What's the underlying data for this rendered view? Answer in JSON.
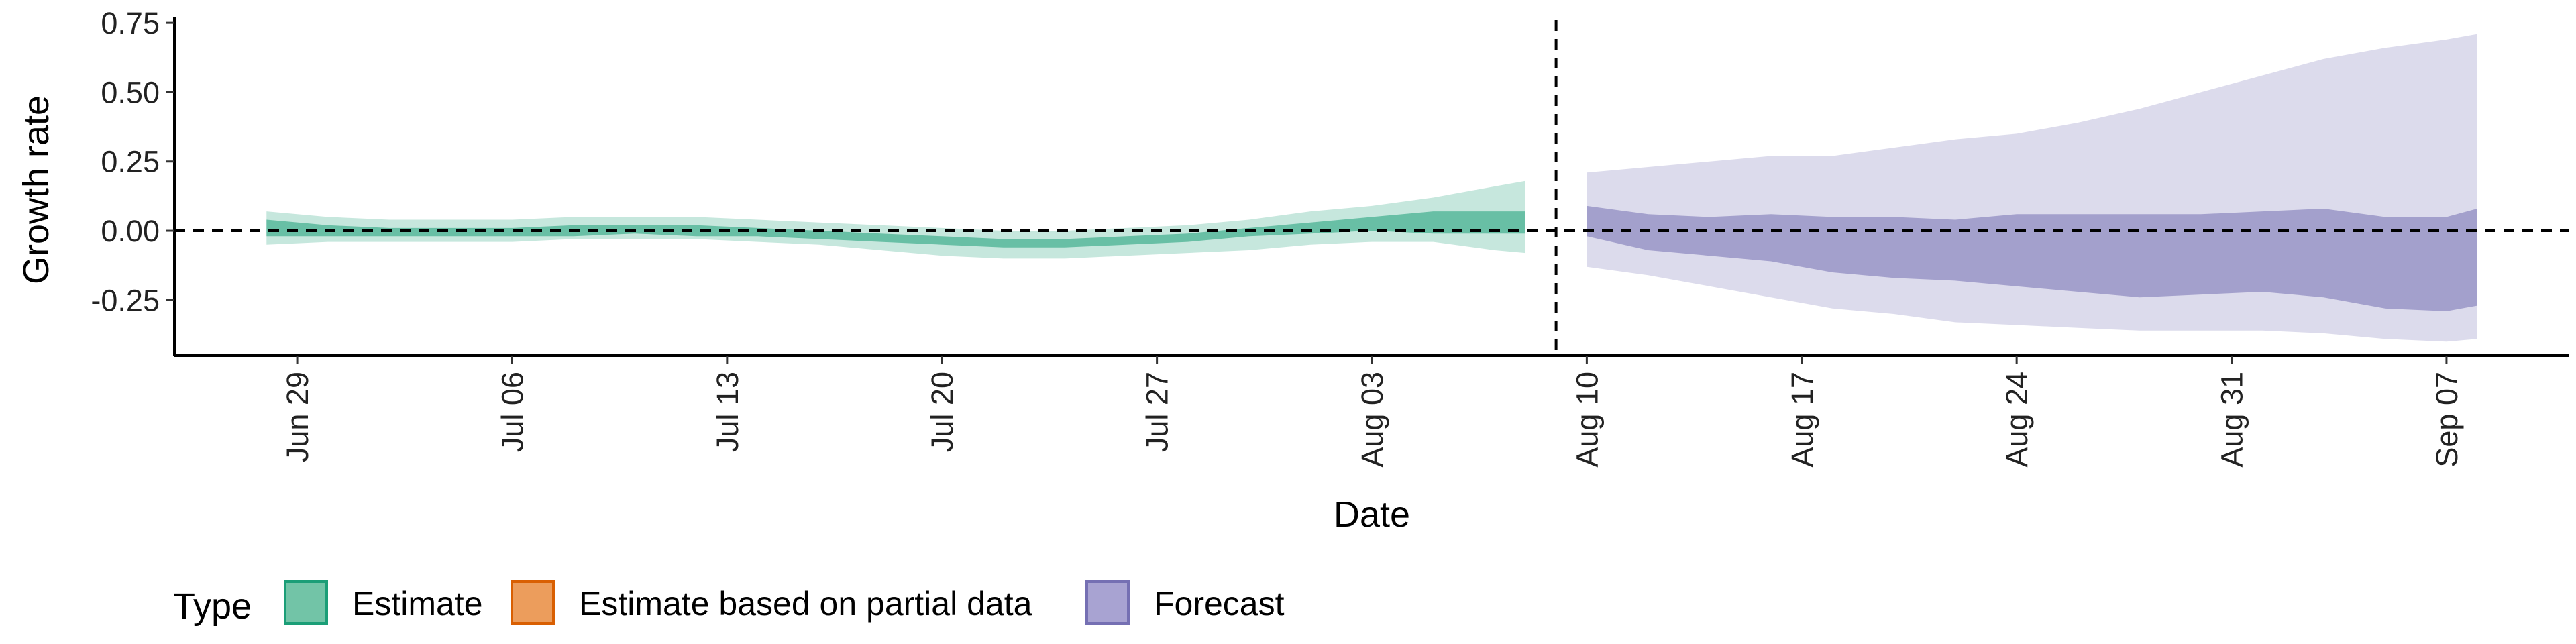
{
  "chart_data": {
    "type": "area",
    "xlabel": "Date",
    "ylabel": "Growth rate",
    "ylim": [
      -0.45,
      0.76
    ],
    "xlim": [
      "2020-06-25",
      "2020-09-11"
    ],
    "y_ticks": [
      -0.25,
      0.0,
      0.25,
      0.5,
      0.75
    ],
    "y_tick_labels": [
      "-0.25",
      "0.00",
      "0.25",
      "0.50",
      "0.75"
    ],
    "x_ticks": [
      "2020-06-29",
      "2020-07-06",
      "2020-07-13",
      "2020-07-20",
      "2020-07-27",
      "2020-08-03",
      "2020-08-10",
      "2020-08-17",
      "2020-08-24",
      "2020-08-31",
      "2020-09-07"
    ],
    "x_tick_labels": [
      "Jun 29",
      "Jul 06",
      "Jul 13",
      "Jul 20",
      "Jul 27",
      "Aug 03",
      "Aug 10",
      "Aug 17",
      "Aug 24",
      "Aug 31",
      "Sep 07"
    ],
    "reference_lines": {
      "horizontal_y": 0.0,
      "vertical_x": "2020-08-09"
    },
    "legend": {
      "title": "Type",
      "position": "bottom",
      "items": [
        {
          "label": "Estimate",
          "fill": "#72c4a7",
          "stroke": "#1b9e77"
        },
        {
          "label": "Estimate based on partial data",
          "fill": "#ec9d5c",
          "stroke": "#d95f02"
        },
        {
          "label": "Forecast",
          "fill": "#a8a3d2",
          "stroke": "#7570b3"
        }
      ]
    },
    "series": [
      {
        "name": "Estimate",
        "color": "#1b9e77",
        "x": [
          "2020-06-28",
          "2020-06-30",
          "2020-07-02",
          "2020-07-04",
          "2020-07-06",
          "2020-07-08",
          "2020-07-10",
          "2020-07-12",
          "2020-07-14",
          "2020-07-16",
          "2020-07-18",
          "2020-07-20",
          "2020-07-22",
          "2020-07-24",
          "2020-07-26",
          "2020-07-28",
          "2020-07-30",
          "2020-08-01",
          "2020-08-03",
          "2020-08-05",
          "2020-08-07",
          "2020-08-08"
        ],
        "lower_90": [
          -0.05,
          -0.04,
          -0.04,
          -0.04,
          -0.04,
          -0.03,
          -0.03,
          -0.03,
          -0.04,
          -0.05,
          -0.07,
          -0.09,
          -0.1,
          -0.1,
          -0.09,
          -0.08,
          -0.07,
          -0.05,
          -0.04,
          -0.04,
          -0.07,
          -0.08
        ],
        "upper_90": [
          0.07,
          0.05,
          0.04,
          0.04,
          0.04,
          0.05,
          0.05,
          0.05,
          0.04,
          0.03,
          0.02,
          0.01,
          0.0,
          0.0,
          0.01,
          0.02,
          0.04,
          0.07,
          0.09,
          0.12,
          0.16,
          0.18
        ],
        "lower_50": [
          -0.02,
          -0.02,
          -0.02,
          -0.02,
          -0.02,
          -0.02,
          -0.01,
          -0.02,
          -0.02,
          -0.03,
          -0.04,
          -0.05,
          -0.06,
          -0.06,
          -0.05,
          -0.04,
          -0.02,
          -0.01,
          0.0,
          -0.01,
          -0.01,
          -0.01
        ],
        "upper_50": [
          0.04,
          0.02,
          0.01,
          0.01,
          0.01,
          0.02,
          0.02,
          0.02,
          0.01,
          0.0,
          -0.01,
          -0.02,
          -0.03,
          -0.03,
          -0.02,
          -0.01,
          0.01,
          0.03,
          0.05,
          0.07,
          0.07,
          0.07
        ]
      },
      {
        "name": "Forecast",
        "color": "#7570b3",
        "x": [
          "2020-08-10",
          "2020-08-12",
          "2020-08-14",
          "2020-08-16",
          "2020-08-18",
          "2020-08-20",
          "2020-08-22",
          "2020-08-24",
          "2020-08-26",
          "2020-08-28",
          "2020-08-30",
          "2020-09-01",
          "2020-09-03",
          "2020-09-05",
          "2020-09-07",
          "2020-09-08"
        ],
        "lower_90": [
          -0.13,
          -0.16,
          -0.2,
          -0.24,
          -0.28,
          -0.3,
          -0.33,
          -0.34,
          -0.35,
          -0.36,
          -0.36,
          -0.36,
          -0.37,
          -0.39,
          -0.4,
          -0.39
        ],
        "upper_90": [
          0.21,
          0.23,
          0.25,
          0.27,
          0.27,
          0.3,
          0.33,
          0.35,
          0.39,
          0.44,
          0.5,
          0.56,
          0.62,
          0.66,
          0.69,
          0.71
        ],
        "lower_50": [
          -0.02,
          -0.07,
          -0.09,
          -0.11,
          -0.15,
          -0.17,
          -0.18,
          -0.2,
          -0.22,
          -0.24,
          -0.23,
          -0.22,
          -0.24,
          -0.28,
          -0.29,
          -0.27
        ],
        "upper_50": [
          0.09,
          0.06,
          0.05,
          0.06,
          0.05,
          0.05,
          0.04,
          0.06,
          0.06,
          0.06,
          0.06,
          0.07,
          0.08,
          0.05,
          0.05,
          0.08
        ]
      }
    ]
  }
}
